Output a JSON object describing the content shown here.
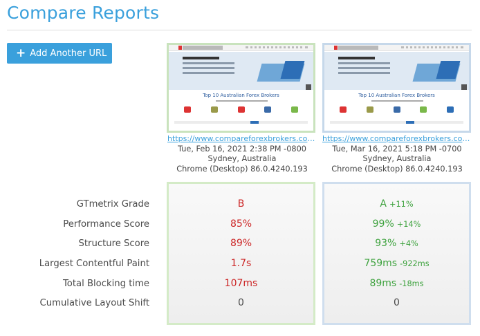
{
  "page": {
    "title": "Compare Reports"
  },
  "toolbar": {
    "add_url_label": "Add Another URL",
    "add_url_icon": "plus-icon"
  },
  "reports": [
    {
      "url": "https://www.compareforexbrokers.com/au...",
      "date": "Tue, Feb 16, 2021 2:38 PM -0800",
      "location": "Sydney, Australia",
      "browser": "Chrome (Desktop) 86.0.4240.193",
      "thumbnail": {
        "heading": "Top 10 Australian Forex Brokers"
      },
      "border_color": "#c9e3bd"
    },
    {
      "url": "https://www.compareforexbrokers.com/au...",
      "date": "Tue, Mar 16, 2021 5:18 PM -0700",
      "location": "Sydney, Australia",
      "browser": "Chrome (Desktop) 86.0.4240.193",
      "thumbnail": {
        "heading": "Top 10 Australian Forex Brokers"
      },
      "border_color": "#c6d8ea"
    }
  ],
  "metrics": [
    {
      "label": "GTmetrix Grade",
      "a": "B",
      "b": "A",
      "b_delta": "+11%"
    },
    {
      "label": "Performance Score",
      "a": "85%",
      "b": "99%",
      "b_delta": "+14%"
    },
    {
      "label": "Structure Score",
      "a": "89%",
      "b": "93%",
      "b_delta": "+4%"
    },
    {
      "label": "Largest Contentful Paint",
      "a": "1.7s",
      "b": "759ms",
      "b_delta": "-922ms"
    },
    {
      "label": "Total Blocking time",
      "a": "107ms",
      "b": "89ms",
      "b_delta": "-18ms"
    },
    {
      "label": "Cumulative Layout Shift",
      "a": "0",
      "b": "0",
      "b_delta": ""
    }
  ],
  "colors": {
    "accent": "#3aa0dc",
    "worse": "#cc2525",
    "better": "#3ea23e",
    "neutral": "#4a4a4a"
  }
}
